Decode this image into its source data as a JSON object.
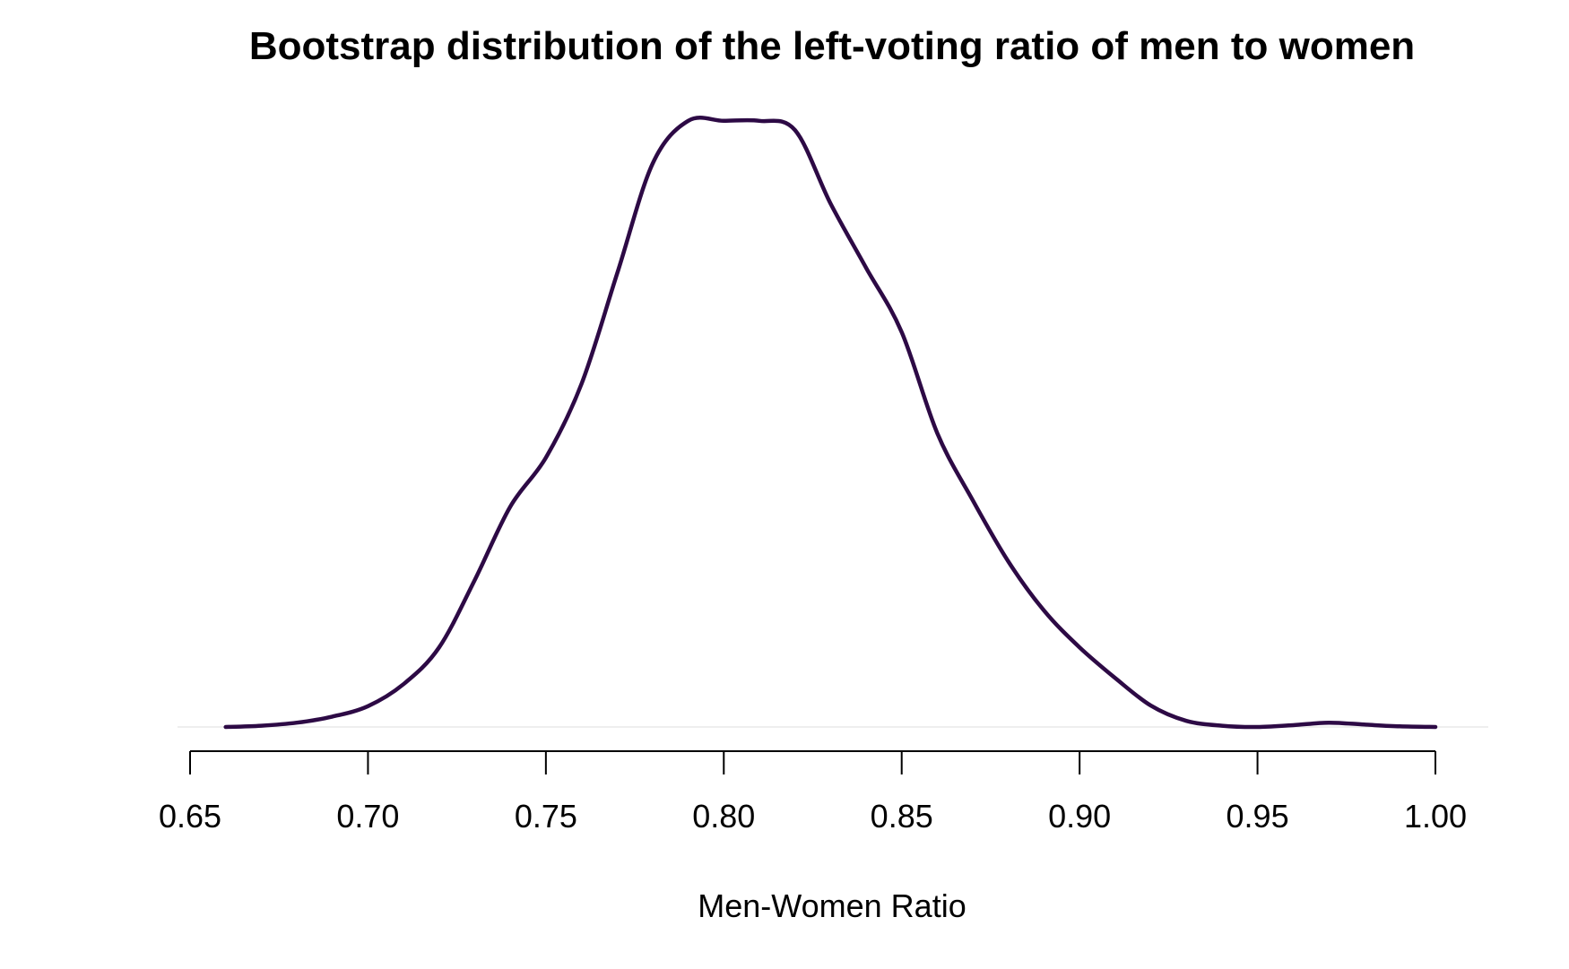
{
  "chart_data": {
    "type": "line",
    "title": "Bootstrap distribution of the left-voting ratio of men to women",
    "xlabel": "Men-Women Ratio",
    "ylabel": "",
    "xlim": [
      0.65,
      1.0
    ],
    "ylim": [
      0,
      1
    ],
    "x_ticks": [
      "0.65",
      "0.70",
      "0.75",
      "0.80",
      "0.85",
      "0.90",
      "0.95",
      "1.00"
    ],
    "y_axis_shown": false,
    "grid": false,
    "legend": "none",
    "line_color": "#2d0a45",
    "series": [
      {
        "name": "",
        "x": [
          0.66,
          0.67,
          0.68,
          0.69,
          0.7,
          0.71,
          0.72,
          0.73,
          0.74,
          0.75,
          0.76,
          0.77,
          0.78,
          0.79,
          0.8,
          0.81,
          0.82,
          0.83,
          0.84,
          0.85,
          0.86,
          0.87,
          0.88,
          0.89,
          0.9,
          0.91,
          0.92,
          0.93,
          0.94,
          0.95,
          0.96,
          0.97,
          0.98,
          0.99,
          1.0
        ],
        "y": [
          0.0,
          0.002,
          0.007,
          0.017,
          0.034,
          0.07,
          0.13,
          0.24,
          0.36,
          0.44,
          0.56,
          0.74,
          0.92,
          0.99,
          0.99,
          0.99,
          0.975,
          0.855,
          0.75,
          0.645,
          0.48,
          0.37,
          0.27,
          0.19,
          0.13,
          0.08,
          0.035,
          0.01,
          0.002,
          0.0,
          0.003,
          0.007,
          0.004,
          0.001,
          0.0
        ]
      }
    ]
  }
}
